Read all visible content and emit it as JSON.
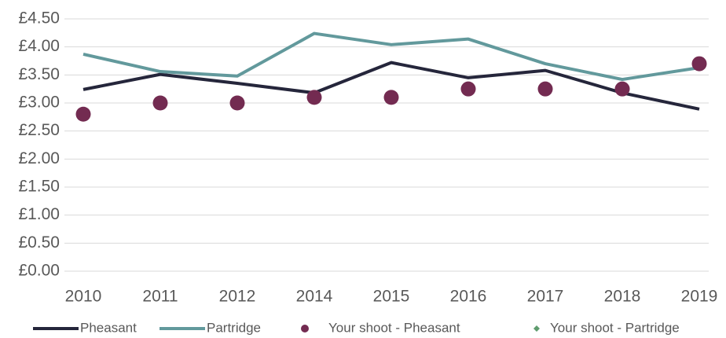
{
  "chart_data": {
    "type": "line",
    "categories": [
      "2010",
      "2011",
      "2012",
      "2014",
      "2015",
      "2016",
      "2017",
      "2018",
      "2019"
    ],
    "series": [
      {
        "name": "Pheasant",
        "type": "line",
        "color": "#25263b",
        "values": [
          3.24,
          3.51,
          3.35,
          3.18,
          3.72,
          3.45,
          3.58,
          3.18,
          2.89
        ]
      },
      {
        "name": "Partridge",
        "type": "line",
        "color": "#62999c",
        "values": [
          3.87,
          3.56,
          3.48,
          4.24,
          4.04,
          4.14,
          3.7,
          3.42,
          3.63
        ]
      },
      {
        "name": "Your shoot - Pheasant",
        "type": "scatter",
        "marker": "circle",
        "color": "#732b51",
        "values": [
          2.8,
          3.0,
          3.0,
          3.1,
          3.1,
          3.25,
          3.25,
          3.25,
          3.7
        ]
      },
      {
        "name": "Your shoot - Partridge",
        "type": "scatter",
        "marker": "diamond",
        "color": "#5f9c6e",
        "values": [
          null,
          null,
          null,
          null,
          null,
          null,
          null,
          null,
          null
        ]
      }
    ],
    "ylim": [
      0,
      4.5
    ],
    "yticks": [
      {
        "value": 0,
        "label": "£0.00"
      },
      {
        "value": 0.5,
        "label": "£0.50"
      },
      {
        "value": 1,
        "label": "£1.00"
      },
      {
        "value": 1.5,
        "label": "£1.50"
      },
      {
        "value": 2,
        "label": "£2.00"
      },
      {
        "value": 2.5,
        "label": "£2.50"
      },
      {
        "value": 3,
        "label": "£3.00"
      },
      {
        "value": 3.5,
        "label": "£3.50"
      },
      {
        "value": 4,
        "label": "£4.00"
      },
      {
        "value": 4.5,
        "label": "£4.50"
      }
    ],
    "grid": true,
    "legend": "bottom"
  }
}
